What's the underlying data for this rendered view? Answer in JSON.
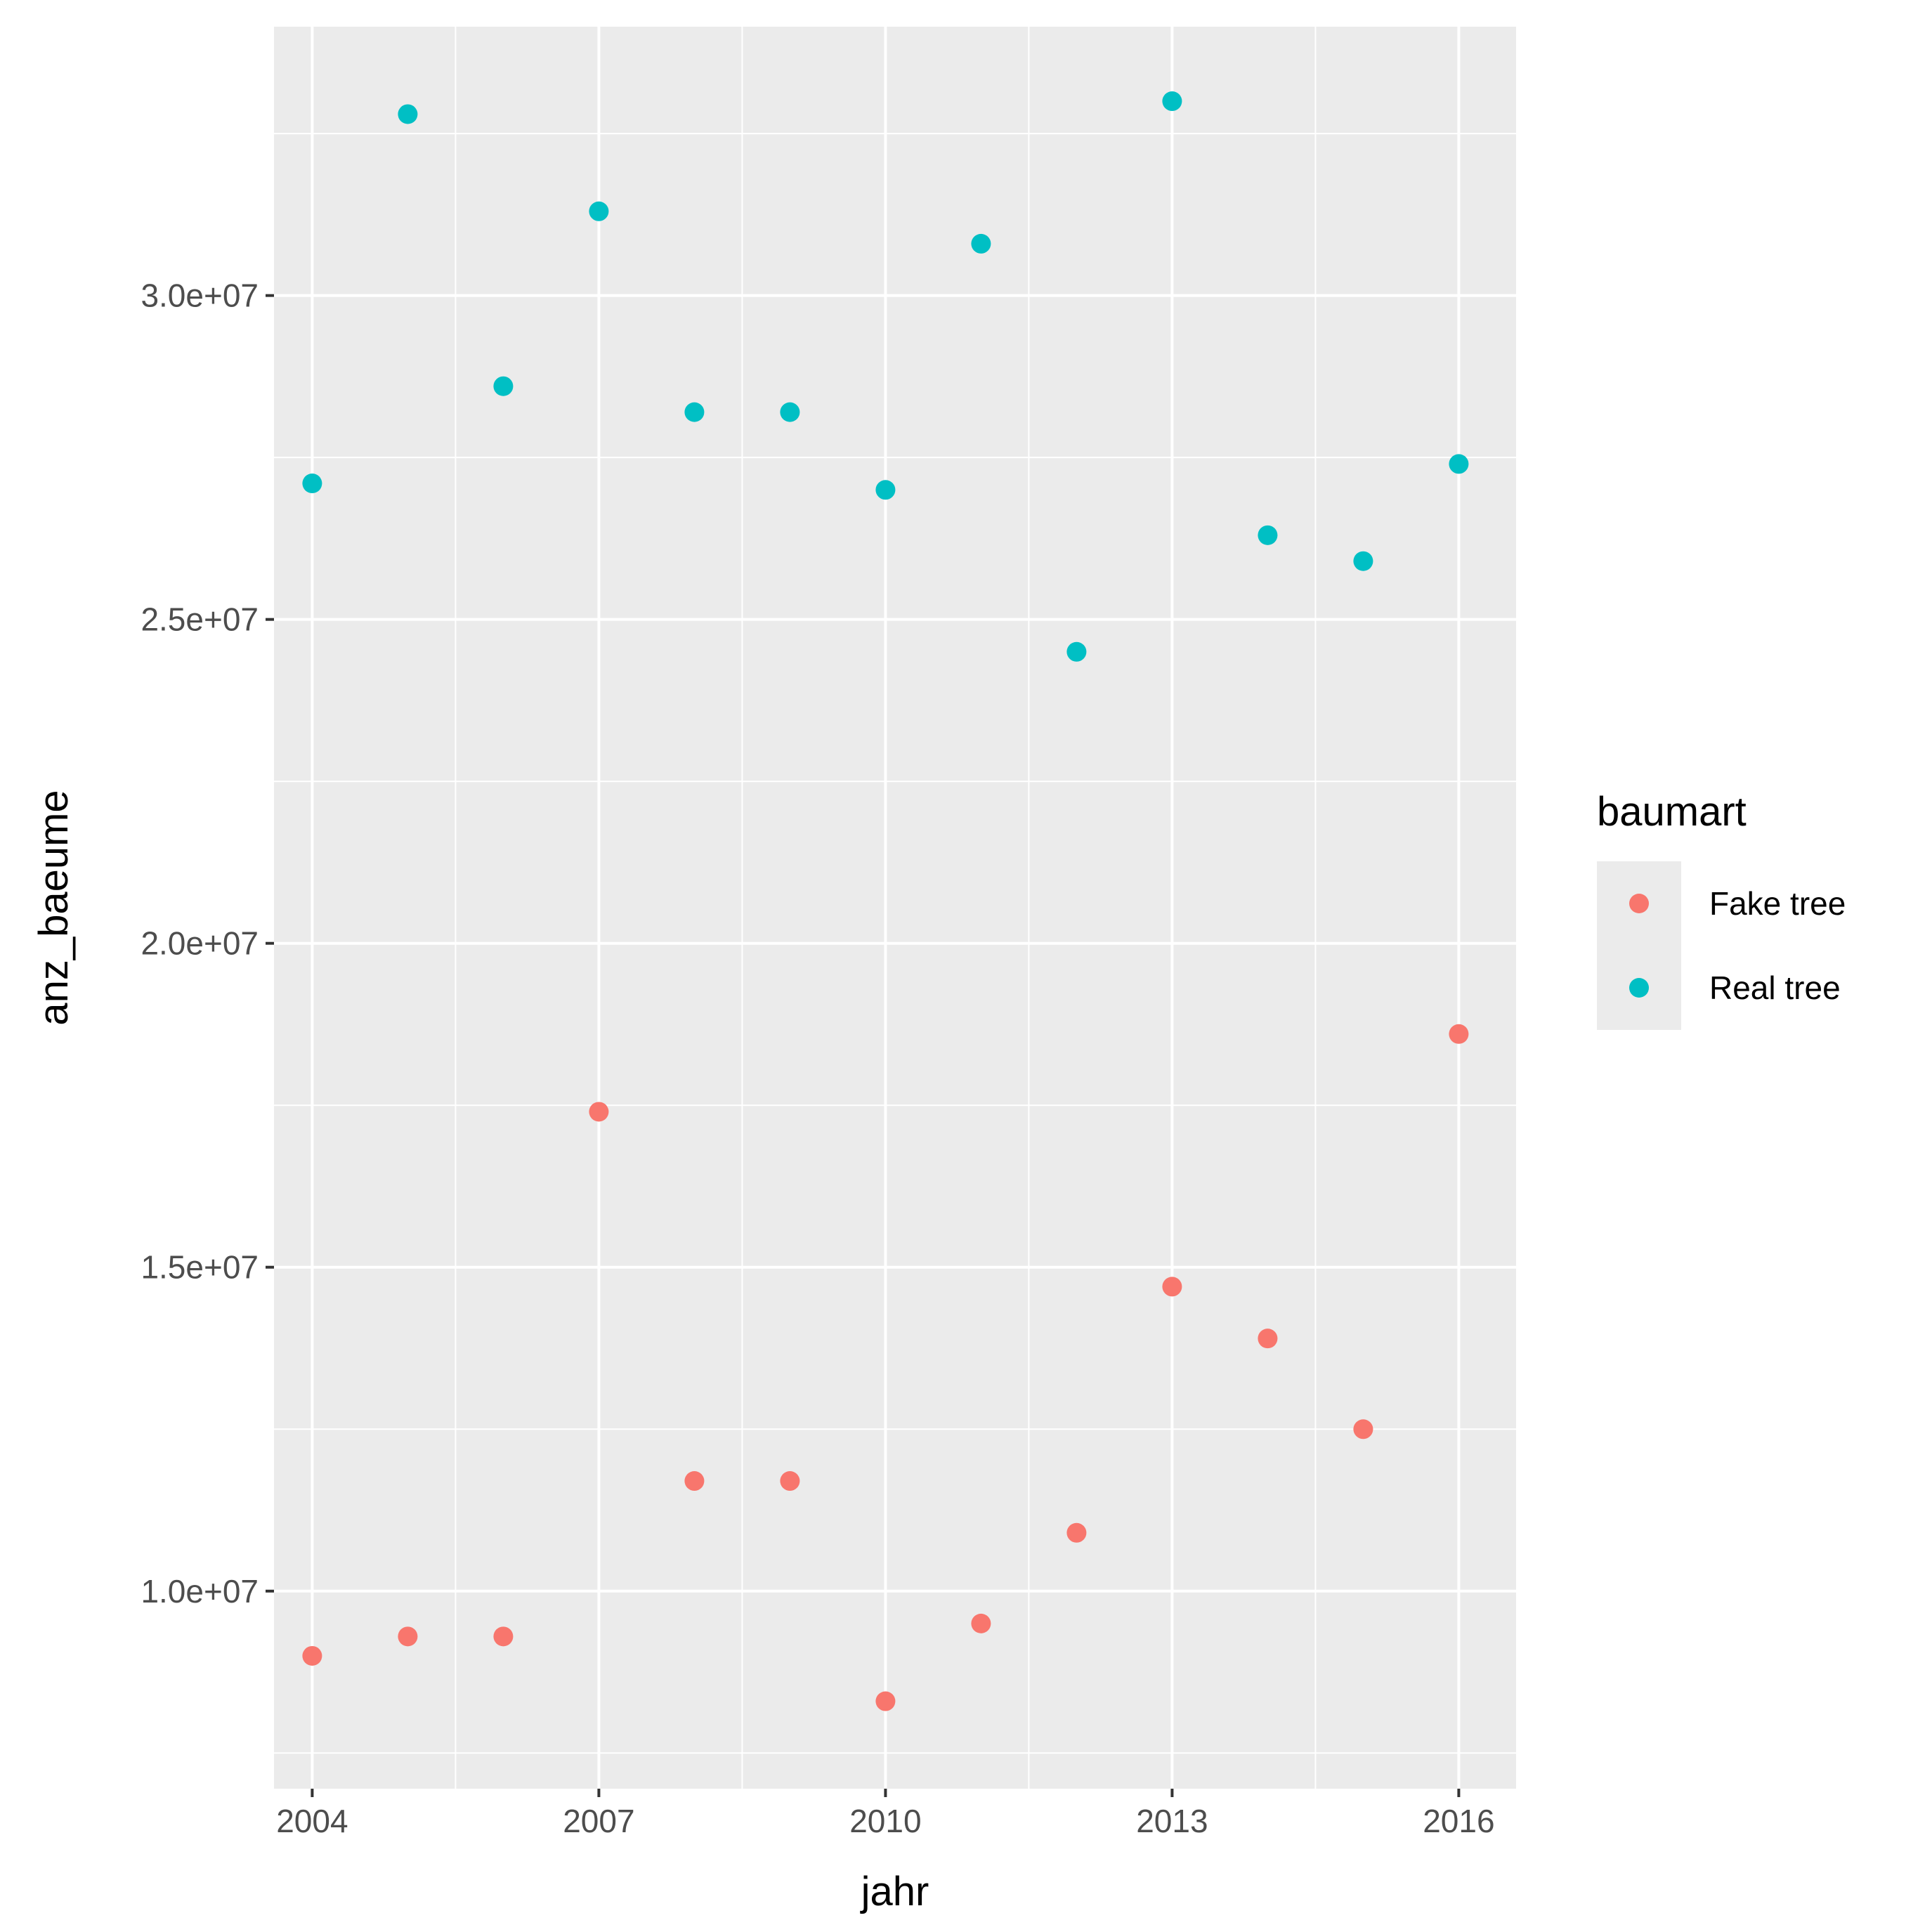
{
  "chart_data": {
    "type": "scatter",
    "title": "",
    "xlabel": "jahr",
    "ylabel": "anz_baeume",
    "xlim": [
      2003.6,
      2016.6
    ],
    "ylim": [
      6950000,
      34150000
    ],
    "x_ticks": [
      2004,
      2007,
      2010,
      2013,
      2016
    ],
    "x_tick_labels": [
      "2004",
      "2007",
      "2010",
      "2013",
      "2016"
    ],
    "y_ticks": [
      10000000,
      15000000,
      20000000,
      25000000,
      30000000
    ],
    "y_tick_labels": [
      "1.0e+07",
      "1.5e+07",
      "2.0e+07",
      "2.5e+07",
      "3.0e+07"
    ],
    "grid": true,
    "legend": {
      "title": "baumart",
      "position": "right"
    },
    "series": [
      {
        "name": "Fake tree",
        "color": "#F8766D",
        "points": [
          {
            "x": 2004,
            "y": 9000000
          },
          {
            "x": 2005,
            "y": 9300000
          },
          {
            "x": 2006,
            "y": 9300000
          },
          {
            "x": 2007,
            "y": 17400000
          },
          {
            "x": 2008,
            "y": 11700000
          },
          {
            "x": 2009,
            "y": 11700000
          },
          {
            "x": 2010,
            "y": 8300000
          },
          {
            "x": 2011,
            "y": 9500000
          },
          {
            "x": 2012,
            "y": 10900000
          },
          {
            "x": 2013,
            "y": 14700000
          },
          {
            "x": 2014,
            "y": 13900000
          },
          {
            "x": 2015,
            "y": 12500000
          },
          {
            "x": 2016,
            "y": 18600000
          }
        ]
      },
      {
        "name": "Real tree",
        "color": "#00BFC4",
        "points": [
          {
            "x": 2004,
            "y": 27100000
          },
          {
            "x": 2005,
            "y": 32800000
          },
          {
            "x": 2006,
            "y": 28600000
          },
          {
            "x": 2007,
            "y": 31300000
          },
          {
            "x": 2008,
            "y": 28200000
          },
          {
            "x": 2009,
            "y": 28200000
          },
          {
            "x": 2010,
            "y": 27000000
          },
          {
            "x": 2011,
            "y": 30800000
          },
          {
            "x": 2012,
            "y": 24500000
          },
          {
            "x": 2013,
            "y": 33000000
          },
          {
            "x": 2014,
            "y": 26300000
          },
          {
            "x": 2015,
            "y": 25900000
          },
          {
            "x": 2016,
            "y": 27400000
          }
        ]
      }
    ]
  }
}
